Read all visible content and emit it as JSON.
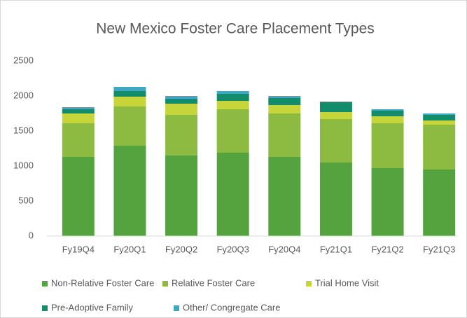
{
  "chart_data": {
    "type": "stacked_bar",
    "title": "New Mexico Foster Care Placement Types",
    "categories": [
      "Fy19Q4",
      "Fy20Q1",
      "Fy20Q2",
      "Fy20Q3",
      "Fy20Q4",
      "Fy21Q1",
      "Fy21Q2",
      "Fy21Q3"
    ],
    "series": [
      {
        "name": "Non-Relative Foster Care",
        "color": "#54a33e",
        "values": [
          1130,
          1290,
          1150,
          1190,
          1130,
          1050,
          970,
          950
        ]
      },
      {
        "name": "Relative Foster Care",
        "color": "#8dbb42",
        "values": [
          480,
          560,
          580,
          620,
          620,
          620,
          640,
          640
        ]
      },
      {
        "name": "Trial Home Visit",
        "color": "#c6d63a",
        "values": [
          140,
          140,
          160,
          120,
          120,
          100,
          100,
          60
        ]
      },
      {
        "name": "Pre-Adoptive Family",
        "color": "#138c6c",
        "values": [
          60,
          80,
          70,
          100,
          100,
          140,
          80,
          80
        ]
      },
      {
        "name": "Other/ Congregate Care",
        "color": "#3fa8c4",
        "values": [
          30,
          60,
          40,
          40,
          30,
          10,
          20,
          20
        ]
      }
    ],
    "ylim": [
      0,
      2500
    ],
    "yticks": [
      0,
      500,
      1000,
      1500,
      2000,
      2500
    ],
    "grid": false
  }
}
